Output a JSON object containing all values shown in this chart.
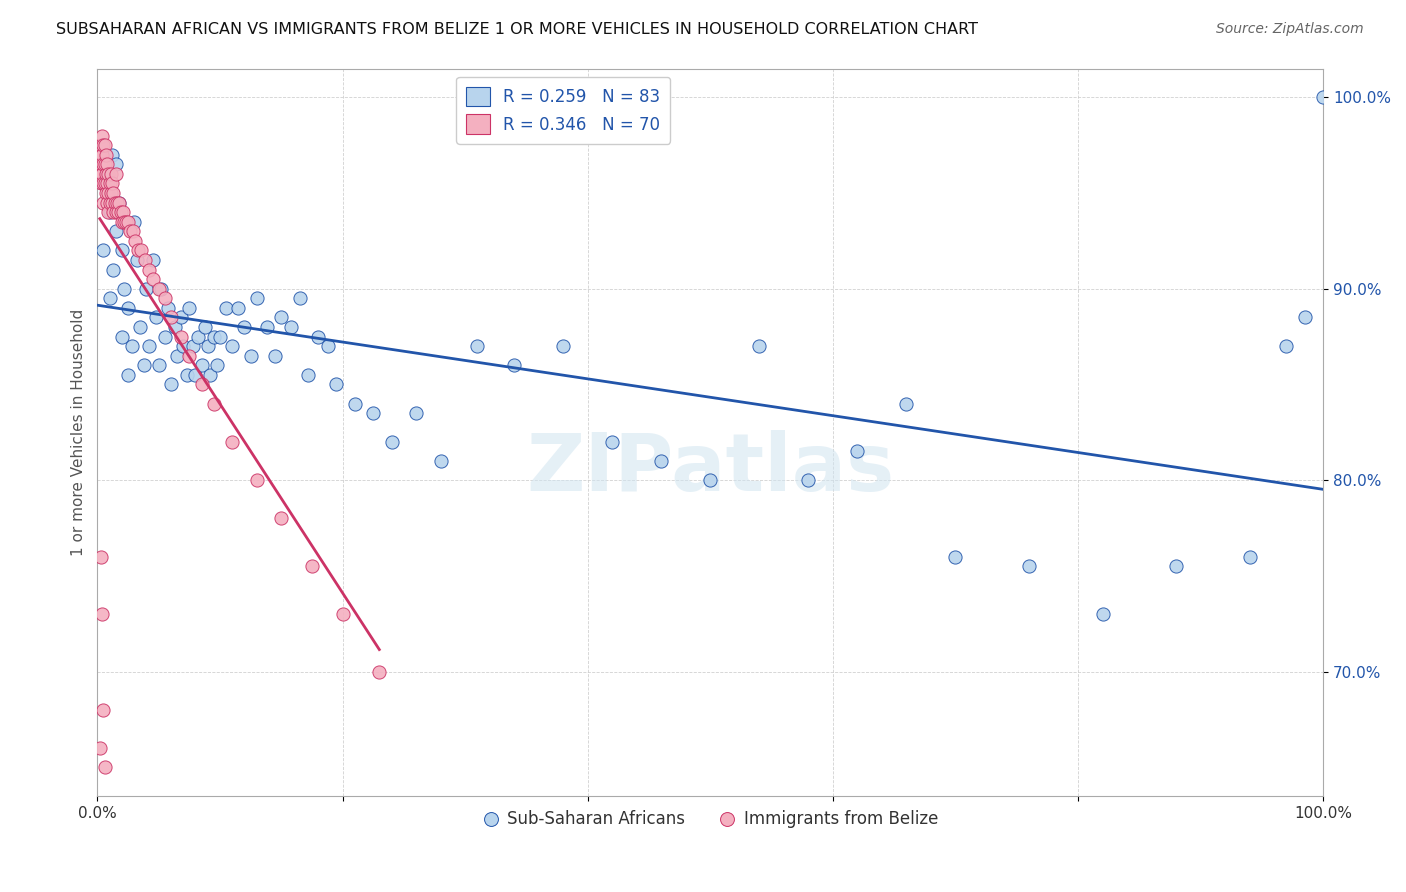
{
  "title": "SUBSAHARAN AFRICAN VS IMMIGRANTS FROM BELIZE 1 OR MORE VEHICLES IN HOUSEHOLD CORRELATION CHART",
  "source": "Source: ZipAtlas.com",
  "ylabel": "1 or more Vehicles in Household",
  "xlim": [
    0.0,
    1.0
  ],
  "ylim": [
    0.635,
    1.015
  ],
  "yticks": [
    0.7,
    0.8,
    0.9,
    1.0
  ],
  "ytick_labels": [
    "70.0%",
    "80.0%",
    "90.0%",
    "100.0%"
  ],
  "blue_R": 0.259,
  "blue_N": 83,
  "pink_R": 0.346,
  "pink_N": 70,
  "blue_color": "#b8d4ed",
  "pink_color": "#f4b0c0",
  "blue_line_color": "#2255aa",
  "pink_line_color": "#cc3366",
  "legend_label_blue": "Sub-Saharan Africans",
  "legend_label_pink": "Immigrants from Belize",
  "watermark": "ZIPatlas",
  "blue_x": [
    0.005,
    0.005,
    0.008,
    0.01,
    0.01,
    0.012,
    0.013,
    0.015,
    0.015,
    0.018,
    0.02,
    0.02,
    0.022,
    0.025,
    0.025,
    0.028,
    0.03,
    0.032,
    0.035,
    0.038,
    0.04,
    0.042,
    0.045,
    0.048,
    0.05,
    0.052,
    0.055,
    0.058,
    0.06,
    0.063,
    0.065,
    0.068,
    0.07,
    0.073,
    0.075,
    0.078,
    0.08,
    0.082,
    0.085,
    0.088,
    0.09,
    0.092,
    0.095,
    0.098,
    0.1,
    0.105,
    0.11,
    0.115,
    0.12,
    0.125,
    0.13,
    0.138,
    0.145,
    0.15,
    0.158,
    0.165,
    0.172,
    0.18,
    0.188,
    0.195,
    0.21,
    0.225,
    0.24,
    0.26,
    0.28,
    0.31,
    0.34,
    0.38,
    0.42,
    0.46,
    0.5,
    0.54,
    0.58,
    0.62,
    0.66,
    0.7,
    0.76,
    0.82,
    0.88,
    0.94,
    0.97,
    0.985,
    1.0
  ],
  "blue_y": [
    0.955,
    0.92,
    0.96,
    0.94,
    0.895,
    0.97,
    0.91,
    0.965,
    0.93,
    0.945,
    0.875,
    0.92,
    0.9,
    0.855,
    0.89,
    0.87,
    0.935,
    0.915,
    0.88,
    0.86,
    0.9,
    0.87,
    0.915,
    0.885,
    0.86,
    0.9,
    0.875,
    0.89,
    0.85,
    0.88,
    0.865,
    0.885,
    0.87,
    0.855,
    0.89,
    0.87,
    0.855,
    0.875,
    0.86,
    0.88,
    0.87,
    0.855,
    0.875,
    0.86,
    0.875,
    0.89,
    0.87,
    0.89,
    0.88,
    0.865,
    0.895,
    0.88,
    0.865,
    0.885,
    0.88,
    0.895,
    0.855,
    0.875,
    0.87,
    0.85,
    0.84,
    0.835,
    0.82,
    0.835,
    0.81,
    0.87,
    0.86,
    0.87,
    0.82,
    0.81,
    0.8,
    0.87,
    0.8,
    0.815,
    0.84,
    0.76,
    0.755,
    0.73,
    0.755,
    0.76,
    0.87,
    0.885,
    1.0
  ],
  "pink_x": [
    0.002,
    0.002,
    0.003,
    0.003,
    0.003,
    0.004,
    0.004,
    0.004,
    0.005,
    0.005,
    0.005,
    0.005,
    0.006,
    0.006,
    0.006,
    0.007,
    0.007,
    0.007,
    0.008,
    0.008,
    0.008,
    0.009,
    0.009,
    0.009,
    0.01,
    0.01,
    0.011,
    0.011,
    0.012,
    0.012,
    0.013,
    0.013,
    0.014,
    0.015,
    0.015,
    0.016,
    0.017,
    0.018,
    0.019,
    0.02,
    0.021,
    0.022,
    0.023,
    0.025,
    0.027,
    0.029,
    0.031,
    0.033,
    0.036,
    0.039,
    0.042,
    0.045,
    0.05,
    0.055,
    0.06,
    0.068,
    0.075,
    0.085,
    0.095,
    0.11,
    0.13,
    0.15,
    0.175,
    0.2,
    0.23,
    0.003,
    0.004,
    0.005,
    0.006,
    0.002
  ],
  "pink_y": [
    0.97,
    0.96,
    0.975,
    0.965,
    0.955,
    0.98,
    0.97,
    0.96,
    0.975,
    0.965,
    0.955,
    0.945,
    0.975,
    0.965,
    0.955,
    0.97,
    0.96,
    0.95,
    0.965,
    0.955,
    0.945,
    0.96,
    0.95,
    0.94,
    0.955,
    0.945,
    0.96,
    0.95,
    0.955,
    0.945,
    0.95,
    0.94,
    0.945,
    0.96,
    0.94,
    0.945,
    0.94,
    0.945,
    0.94,
    0.935,
    0.94,
    0.935,
    0.935,
    0.935,
    0.93,
    0.93,
    0.925,
    0.92,
    0.92,
    0.915,
    0.91,
    0.905,
    0.9,
    0.895,
    0.885,
    0.875,
    0.865,
    0.85,
    0.84,
    0.82,
    0.8,
    0.78,
    0.755,
    0.73,
    0.7,
    0.76,
    0.73,
    0.68,
    0.65,
    0.66
  ]
}
